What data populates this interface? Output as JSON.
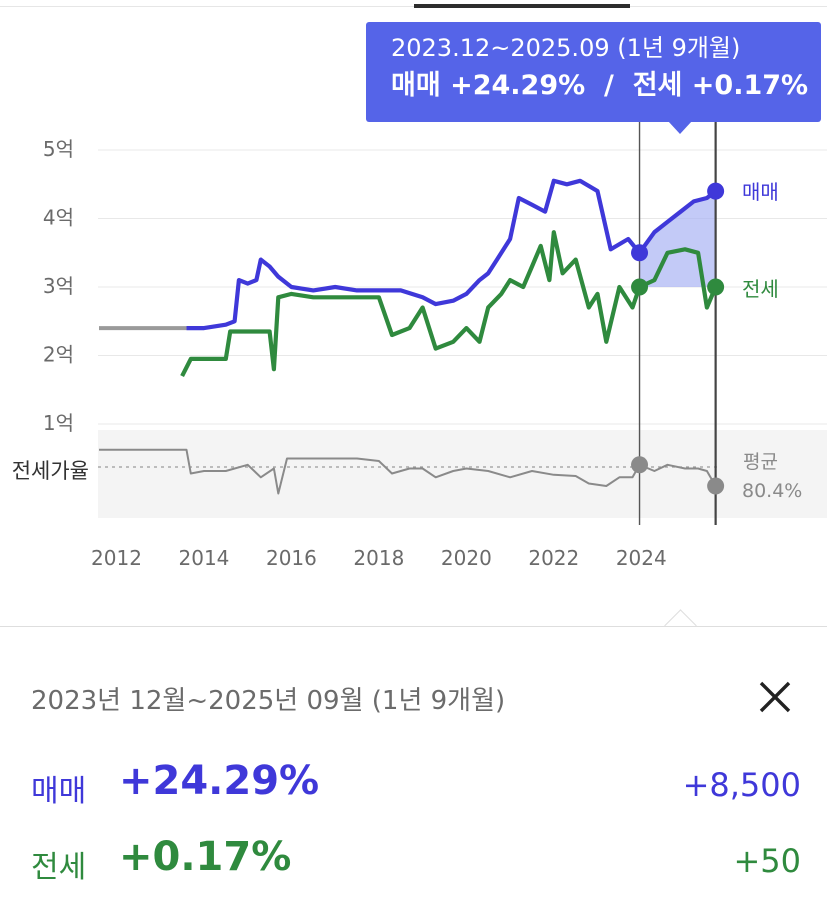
{
  "tooltip": {
    "period": "2023.12~2025.09 (1년 9개월)",
    "sale_label": "매매",
    "sale_change": "+24.29%",
    "separator": "/",
    "jeonse_label": "전세",
    "jeonse_change": "+0.17%"
  },
  "panel": {
    "period": "2023년 12월~2025년 09월 (1년 9개월)",
    "rows": [
      {
        "label": "매매",
        "change": "+24.29%",
        "amount": "+8,500"
      },
      {
        "label": "전세",
        "change": "+0.17%",
        "amount": "+50"
      }
    ]
  },
  "colors": {
    "sale": "#3f38d9",
    "jeonse": "#2f8a3e",
    "ratio": "#8a8a8a",
    "tooltip_bg": "#5564e8"
  },
  "icons": {
    "close": "close-icon"
  },
  "chart_data": {
    "type": "line",
    "y_tick_labels": [
      "1억",
      "2억",
      "3억",
      "4억",
      "5억"
    ],
    "x_tick_labels": [
      "2012",
      "2014",
      "2016",
      "2018",
      "2020",
      "2022",
      "2024"
    ],
    "ylim": [
      1.0,
      5.0
    ],
    "xlim": [
      2011.6,
      2025.8
    ],
    "ratio_axis_label": "전세가율",
    "ratio_average_label": "평균",
    "ratio_average_value": "80.4%",
    "selection": {
      "start": 2023.96,
      "end": 2025.7
    },
    "series": [
      {
        "name": "매매",
        "color": "#3f38d9",
        "points": [
          [
            2013.6,
            2.4
          ],
          [
            2014.0,
            2.4
          ],
          [
            2014.5,
            2.45
          ],
          [
            2014.7,
            2.5
          ],
          [
            2014.8,
            3.1
          ],
          [
            2015.0,
            3.05
          ],
          [
            2015.2,
            3.1
          ],
          [
            2015.3,
            3.4
          ],
          [
            2015.5,
            3.3
          ],
          [
            2015.7,
            3.15
          ],
          [
            2016.0,
            3.0
          ],
          [
            2016.5,
            2.95
          ],
          [
            2017.0,
            3.0
          ],
          [
            2017.5,
            2.95
          ],
          [
            2018.0,
            2.95
          ],
          [
            2018.5,
            2.95
          ],
          [
            2019.0,
            2.85
          ],
          [
            2019.3,
            2.75
          ],
          [
            2019.7,
            2.8
          ],
          [
            2020.0,
            2.9
          ],
          [
            2020.3,
            3.1
          ],
          [
            2020.5,
            3.2
          ],
          [
            2020.7,
            3.4
          ],
          [
            2021.0,
            3.7
          ],
          [
            2021.2,
            4.3
          ],
          [
            2021.5,
            4.2
          ],
          [
            2021.8,
            4.1
          ],
          [
            2022.0,
            4.55
          ],
          [
            2022.3,
            4.5
          ],
          [
            2022.6,
            4.55
          ],
          [
            2023.0,
            4.4
          ],
          [
            2023.3,
            3.55
          ],
          [
            2023.7,
            3.7
          ],
          [
            2023.96,
            3.5
          ],
          [
            2024.3,
            3.8
          ],
          [
            2024.6,
            3.95
          ],
          [
            2024.9,
            4.1
          ],
          [
            2025.2,
            4.25
          ],
          [
            2025.5,
            4.3
          ],
          [
            2025.7,
            4.4
          ]
        ]
      },
      {
        "name": "전세",
        "color": "#2f8a3e",
        "points": [
          [
            2013.5,
            1.7
          ],
          [
            2013.7,
            1.95
          ],
          [
            2014.0,
            1.95
          ],
          [
            2014.5,
            1.95
          ],
          [
            2014.6,
            2.35
          ],
          [
            2015.0,
            2.35
          ],
          [
            2015.5,
            2.35
          ],
          [
            2015.6,
            1.8
          ],
          [
            2015.7,
            2.85
          ],
          [
            2016.0,
            2.9
          ],
          [
            2016.5,
            2.85
          ],
          [
            2017.0,
            2.85
          ],
          [
            2017.5,
            2.85
          ],
          [
            2018.0,
            2.85
          ],
          [
            2018.3,
            2.3
          ],
          [
            2018.7,
            2.4
          ],
          [
            2019.0,
            2.7
          ],
          [
            2019.3,
            2.1
          ],
          [
            2019.7,
            2.2
          ],
          [
            2020.0,
            2.4
          ],
          [
            2020.3,
            2.2
          ],
          [
            2020.5,
            2.7
          ],
          [
            2020.8,
            2.9
          ],
          [
            2021.0,
            3.1
          ],
          [
            2021.3,
            3.0
          ],
          [
            2021.5,
            3.3
          ],
          [
            2021.7,
            3.6
          ],
          [
            2021.9,
            3.1
          ],
          [
            2022.0,
            3.8
          ],
          [
            2022.2,
            3.2
          ],
          [
            2022.5,
            3.4
          ],
          [
            2022.8,
            2.7
          ],
          [
            2023.0,
            2.9
          ],
          [
            2023.2,
            2.2
          ],
          [
            2023.5,
            3.0
          ],
          [
            2023.8,
            2.7
          ],
          [
            2023.96,
            3.0
          ],
          [
            2024.3,
            3.1
          ],
          [
            2024.6,
            3.5
          ],
          [
            2025.0,
            3.55
          ],
          [
            2025.3,
            3.5
          ],
          [
            2025.5,
            2.7
          ],
          [
            2025.7,
            3.0
          ]
        ]
      },
      {
        "name": "전세가율",
        "color": "#8a8a8a",
        "points": [
          [
            2011.6,
            0.97
          ],
          [
            2013.6,
            0.97
          ],
          [
            2013.7,
            0.78
          ],
          [
            2014.0,
            0.8
          ],
          [
            2014.5,
            0.8
          ],
          [
            2015.0,
            0.85
          ],
          [
            2015.3,
            0.75
          ],
          [
            2015.6,
            0.82
          ],
          [
            2015.7,
            0.62
          ],
          [
            2015.9,
            0.9
          ],
          [
            2016.5,
            0.9
          ],
          [
            2017.0,
            0.9
          ],
          [
            2017.5,
            0.9
          ],
          [
            2018.0,
            0.88
          ],
          [
            2018.3,
            0.78
          ],
          [
            2018.7,
            0.82
          ],
          [
            2019.0,
            0.82
          ],
          [
            2019.3,
            0.75
          ],
          [
            2019.7,
            0.8
          ],
          [
            2020.0,
            0.82
          ],
          [
            2020.5,
            0.8
          ],
          [
            2021.0,
            0.75
          ],
          [
            2021.5,
            0.8
          ],
          [
            2022.0,
            0.77
          ],
          [
            2022.5,
            0.76
          ],
          [
            2022.8,
            0.7
          ],
          [
            2023.2,
            0.68
          ],
          [
            2023.5,
            0.75
          ],
          [
            2023.8,
            0.75
          ],
          [
            2023.96,
            0.85
          ],
          [
            2024.3,
            0.8
          ],
          [
            2024.6,
            0.85
          ],
          [
            2025.0,
            0.82
          ],
          [
            2025.3,
            0.82
          ],
          [
            2025.5,
            0.8
          ],
          [
            2025.7,
            0.68
          ]
        ]
      }
    ]
  }
}
